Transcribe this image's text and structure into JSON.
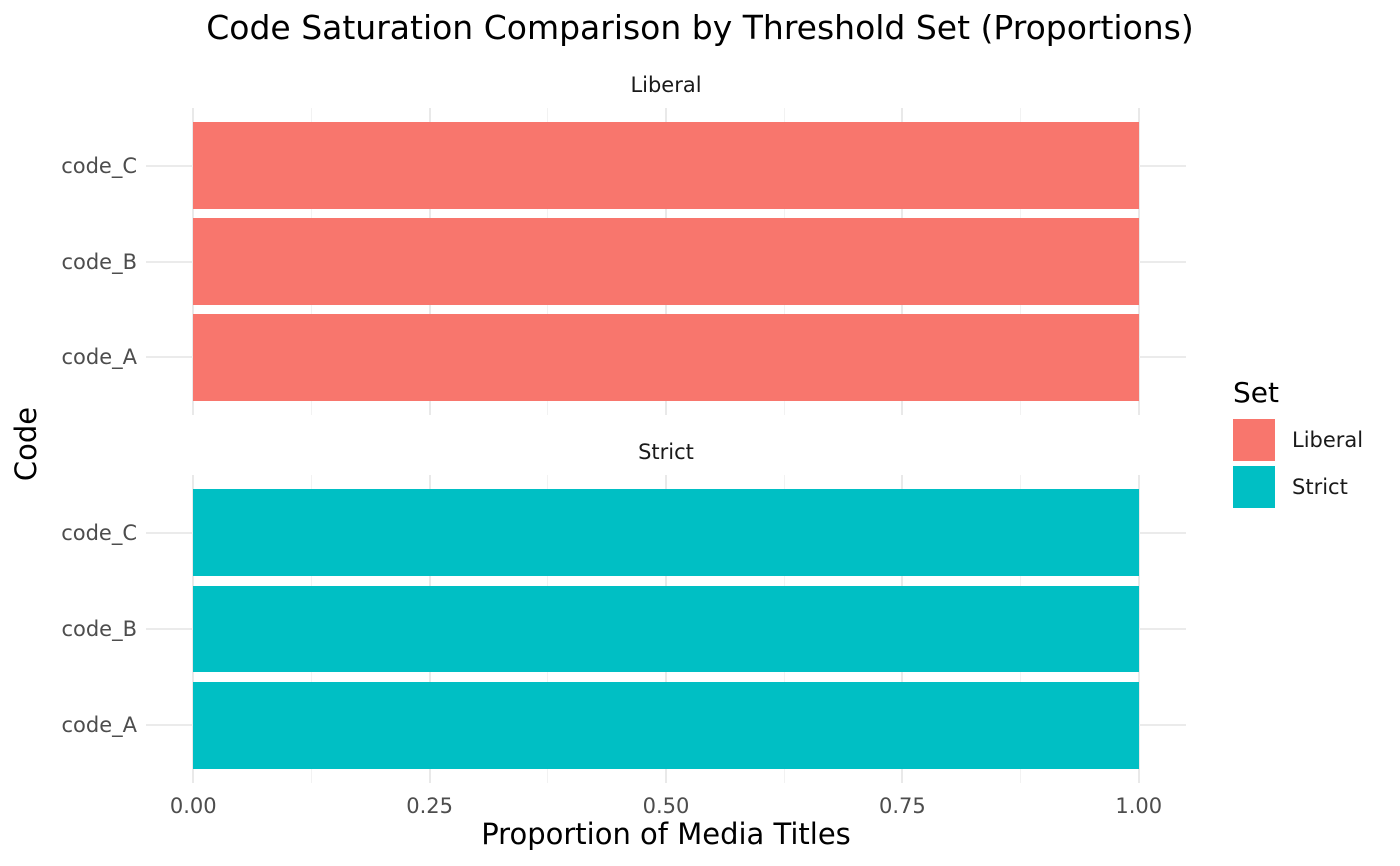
{
  "chart_data": {
    "type": "bar",
    "orientation": "horizontal",
    "title": "Code Saturation Comparison by Threshold Set (Proportions)",
    "xlabel": "Proportion of Media Titles",
    "ylabel": "Code",
    "xlim": [
      0,
      1
    ],
    "x_ticks": [
      0,
      0.25,
      0.5,
      0.75,
      1
    ],
    "x_tick_labels": [
      "0.00",
      "0.25",
      "0.50",
      "0.75",
      "1.00"
    ],
    "categories_bottom_to_top": [
      "code_A",
      "code_B",
      "code_C"
    ],
    "facets": [
      {
        "label": "Liberal",
        "color": "#F8766D",
        "values": [
          1.0,
          1.0,
          1.0
        ]
      },
      {
        "label": "Strict",
        "color": "#00BFC4",
        "values": [
          1.0,
          1.0,
          1.0
        ]
      }
    ],
    "legend": {
      "title": "Set",
      "position": "right",
      "entries": [
        {
          "label": "Liberal",
          "color": "#F8766D"
        },
        {
          "label": "Strict",
          "color": "#00BFC4"
        }
      ]
    },
    "grid": true,
    "background": "#FFFFFF"
  }
}
